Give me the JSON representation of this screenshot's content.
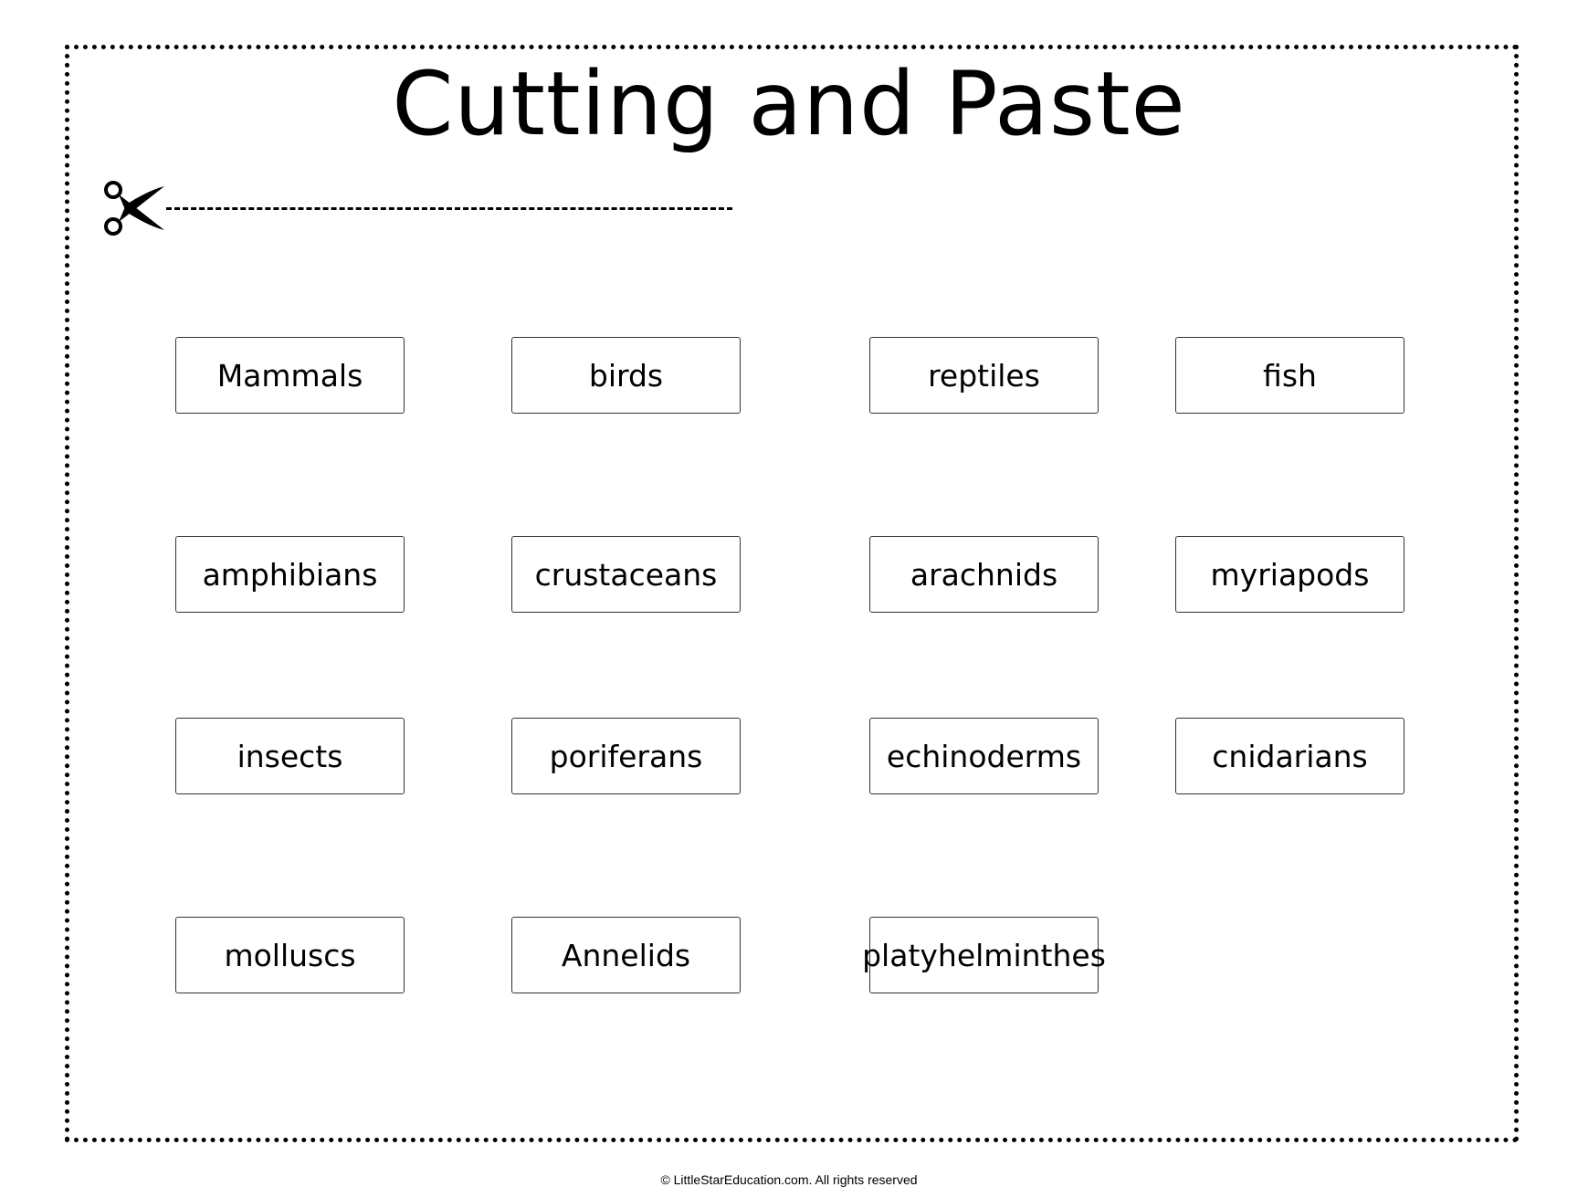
{
  "title": "Cutting and Paste",
  "cards": [
    "Mammals",
    "birds",
    "reptiles",
    "fish",
    "amphibians",
    "crustaceans",
    "arachnids",
    "myriapods",
    "insects",
    "poriferans",
    "echinoderms",
    "cnidarians",
    "molluscs",
    "Annelids",
    "platyhelminthes"
  ],
  "footer": "© LittleStarEducation.com. All rights reserved",
  "icons": {
    "scissors": "scissors-icon"
  }
}
